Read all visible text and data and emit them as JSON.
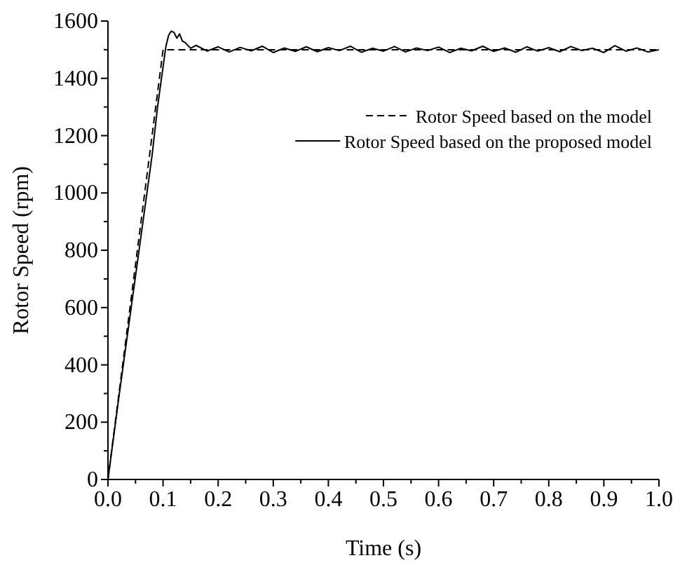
{
  "chart_data": {
    "type": "line",
    "xlabel": "Time (s)",
    "ylabel": "Rotor Speed (rpm)",
    "xlim": [
      0,
      1
    ],
    "ylim": [
      0,
      1600
    ],
    "xticks": [
      {
        "value": 0,
        "label": "0.0"
      },
      {
        "value": 0.05,
        "label": null
      },
      {
        "value": 0.1,
        "label": "0.1"
      },
      {
        "value": 0.15,
        "label": null
      },
      {
        "value": 0.2,
        "label": "0.2"
      },
      {
        "value": 0.25,
        "label": null
      },
      {
        "value": 0.3,
        "label": "0.3"
      },
      {
        "value": 0.35,
        "label": null
      },
      {
        "value": 0.4,
        "label": "0.4"
      },
      {
        "value": 0.45,
        "label": null
      },
      {
        "value": 0.5,
        "label": "0.5"
      },
      {
        "value": 0.55,
        "label": null
      },
      {
        "value": 0.6,
        "label": "0.6"
      },
      {
        "value": 0.65,
        "label": null
      },
      {
        "value": 0.7,
        "label": "0.7"
      },
      {
        "value": 0.75,
        "label": null
      },
      {
        "value": 0.8,
        "label": "0.8"
      },
      {
        "value": 0.85,
        "label": null
      },
      {
        "value": 0.9,
        "label": "0.9"
      },
      {
        "value": 0.95,
        "label": null
      },
      {
        "value": 1,
        "label": "1.0"
      }
    ],
    "yticks": [
      0,
      {
        "value": 100,
        "label": null
      },
      200,
      {
        "value": 300,
        "label": null
      },
      400,
      {
        "value": 500,
        "label": null
      },
      600,
      {
        "value": 700,
        "label": null
      },
      800,
      {
        "value": 900,
        "label": null
      },
      1000,
      {
        "value": 1100,
        "label": null
      },
      1200,
      {
        "value": 1300,
        "label": null
      },
      1400,
      {
        "value": 1500,
        "label": null
      },
      1600
    ],
    "legend": "right",
    "grid": false,
    "series": [
      {
        "name": "Rotor Speed based on the model",
        "color": "#000000",
        "line_style": "dashed",
        "x": [
          0,
          0.1,
          1
        ],
        "values": [
          0,
          1500,
          1500
        ]
      },
      {
        "name": "Rotor Speed based on the proposed model",
        "color": "#000000",
        "line_style": "solid",
        "x": [
          0,
          0.02,
          0.04,
          0.06,
          0.08,
          0.09,
          0.1,
          0.105,
          0.11,
          0.115,
          0.12,
          0.125,
          0.13,
          0.135,
          0.14,
          0.15,
          0.16,
          0.18,
          0.2,
          0.22,
          0.24,
          0.26,
          0.28,
          0.3,
          0.32,
          0.34,
          0.36,
          0.38,
          0.4,
          0.42,
          0.44,
          0.46,
          0.48,
          0.5,
          0.52,
          0.54,
          0.56,
          0.58,
          0.6,
          0.62,
          0.64,
          0.66,
          0.68,
          0.7,
          0.72,
          0.74,
          0.76,
          0.78,
          0.8,
          0.82,
          0.84,
          0.86,
          0.88,
          0.9,
          0.92,
          0.94,
          0.96,
          0.98,
          1
        ],
        "values": [
          0,
          290,
          570,
          850,
          1130,
          1300,
          1440,
          1510,
          1550,
          1565,
          1560,
          1540,
          1555,
          1530,
          1525,
          1505,
          1515,
          1495,
          1510,
          1492,
          1508,
          1496,
          1512,
          1490,
          1506,
          1494,
          1510,
          1493,
          1507,
          1497,
          1512,
          1491,
          1505,
          1495,
          1511,
          1492,
          1506,
          1497,
          1509,
          1490,
          1505,
          1496,
          1512,
          1494,
          1506,
          1491,
          1510,
          1495,
          1507,
          1493,
          1511,
          1497,
          1505,
          1490,
          1514,
          1495,
          1506,
          1492,
          1500
        ]
      }
    ]
  }
}
